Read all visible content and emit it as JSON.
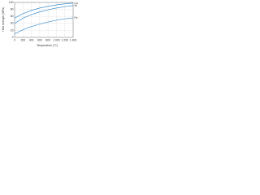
{
  "chart_data": {
    "type": "line",
    "xlabel": "Temperature (°C)",
    "ylabel": "Yield strength (MPa)",
    "x": [
      0,
      200,
      400,
      600,
      800,
      1000,
      1200,
      1400
    ],
    "series": [
      {
        "name": "Cu",
        "color": "#3a8fd0",
        "values": [
          55,
          68,
          77,
          84,
          89,
          93,
          96,
          98
        ]
      },
      {
        "name": "Ni",
        "color": "#3a8fd0",
        "values": [
          40,
          55,
          65,
          73,
          79,
          84,
          88,
          91
        ]
      },
      {
        "name": "Fe",
        "color": "#3a8fd0",
        "values": [
          10,
          22,
          31,
          38,
          44,
          49,
          53,
          56
        ]
      }
    ],
    "xlim": [
      0,
      1400
    ],
    "xticks": [
      0,
      200,
      400,
      600,
      800,
      {
        "value": 1000,
        "label": "1 000"
      },
      {
        "value": 1200,
        "label": "1 200"
      },
      {
        "value": 1400,
        "label": "1 400"
      }
    ],
    "ylim": [
      0,
      100
    ],
    "yticks": [
      0,
      20,
      40,
      60,
      80,
      100
    ],
    "grid": true
  }
}
